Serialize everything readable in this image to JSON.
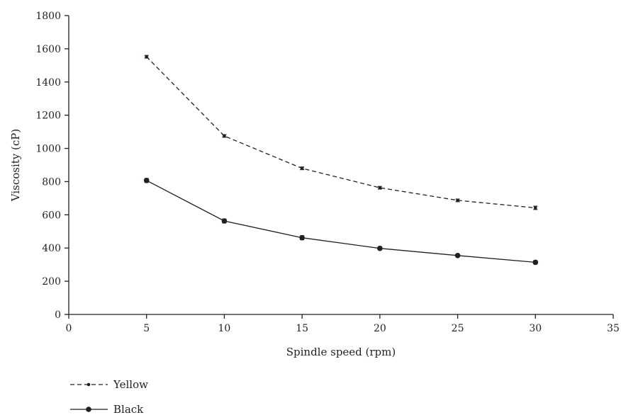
{
  "chart_data": {
    "type": "line",
    "xlabel": "Spindle speed (rpm)",
    "ylabel": "Viscosity (cP)",
    "xlim": [
      0,
      35
    ],
    "ylim": [
      0,
      1800
    ],
    "xticks": [
      0,
      5,
      10,
      15,
      20,
      25,
      30,
      35
    ],
    "yticks": [
      0,
      200,
      400,
      600,
      800,
      1000,
      1200,
      1400,
      1600,
      1800
    ],
    "grid": false,
    "legend_position": "bottom-left",
    "x": [
      5,
      10,
      15,
      20,
      25,
      30
    ],
    "series": [
      {
        "name": "Yellow",
        "values": [
          1552,
          1075,
          880,
          763,
          687,
          642
        ],
        "errors": [
          8,
          8,
          8,
          8,
          8,
          10
        ],
        "line_style": "dashed",
        "marker": "small-dot",
        "color": "#231f20"
      },
      {
        "name": "Black",
        "values": [
          807,
          563,
          462,
          398,
          355,
          314
        ],
        "errors": [
          12,
          12,
          12,
          10,
          8,
          10
        ],
        "line_style": "solid",
        "marker": "dot",
        "color": "#231f20"
      }
    ]
  }
}
